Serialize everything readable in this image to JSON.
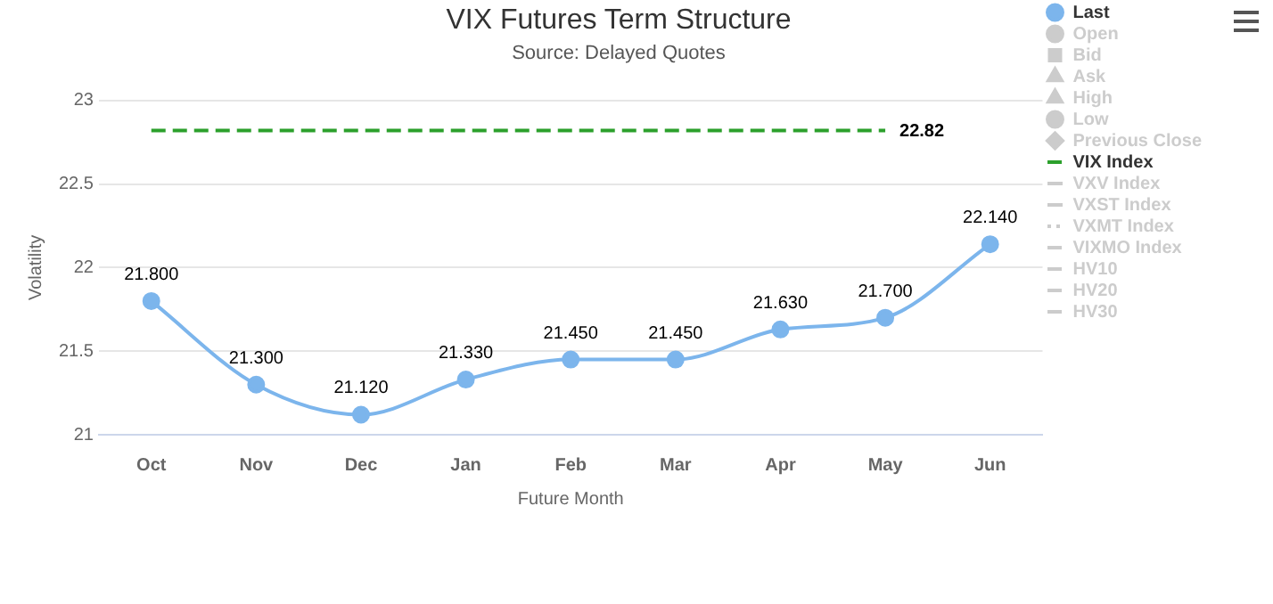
{
  "chart_data": {
    "type": "line",
    "title": "VIX Futures Term Structure",
    "subtitle": "Source: Delayed Quotes",
    "xlabel": "Future Month",
    "ylabel": "Volatility",
    "categories": [
      "Oct",
      "Nov",
      "Dec",
      "Jan",
      "Feb",
      "Mar",
      "Apr",
      "May",
      "Jun"
    ],
    "ylim": [
      21,
      23
    ],
    "yticks": [
      21,
      21.5,
      22,
      22.5,
      23
    ],
    "grid": "y",
    "legend": "right",
    "marker": "circle",
    "series": [
      {
        "name": "Last",
        "color": "#7cb5ec",
        "values": [
          21.8,
          21.3,
          21.12,
          21.33,
          21.45,
          21.45,
          21.63,
          21.7,
          22.14
        ],
        "value_labels": [
          "21.800",
          "21.300",
          "21.120",
          "21.330",
          "21.450",
          "21.450",
          "21.630",
          "21.700",
          "22.140"
        ]
      },
      {
        "name": "Open",
        "color": "#cccccc",
        "values": [
          null,
          null,
          null,
          null,
          null,
          null,
          null,
          null,
          null
        ]
      },
      {
        "name": "Bid",
        "color": "#cccccc",
        "marker": "square",
        "values": [
          null,
          null,
          null,
          null,
          null,
          null,
          null,
          null,
          null
        ]
      },
      {
        "name": "Ask",
        "color": "#cccccc",
        "marker": "triangle",
        "values": [
          null,
          null,
          null,
          null,
          null,
          null,
          null,
          null,
          null
        ]
      },
      {
        "name": "High",
        "color": "#cccccc",
        "marker": "triangle",
        "values": [
          null,
          null,
          null,
          null,
          null,
          null,
          null,
          null,
          null
        ]
      },
      {
        "name": "Low",
        "color": "#cccccc",
        "values": [
          null,
          null,
          null,
          null,
          null,
          null,
          null,
          null,
          null
        ]
      },
      {
        "name": "Previous Close",
        "color": "#cccccc",
        "marker": "diamond",
        "values": [
          null,
          null,
          null,
          null,
          null,
          null,
          null,
          null,
          null
        ]
      },
      {
        "name": "VIX Index",
        "color": "#2ca02c",
        "marker": "none",
        "line_style": "dashed",
        "values": [
          22.82,
          22.82,
          22.82,
          22.82,
          22.82,
          22.82,
          22.82,
          22.82,
          null
        ],
        "value_labels": [
          null,
          null,
          null,
          null,
          null,
          null,
          null,
          "22.82",
          null
        ]
      },
      {
        "name": "VXV Index",
        "color": "#cccccc",
        "marker": "none",
        "values": [
          null,
          null,
          null,
          null,
          null,
          null,
          null,
          null,
          null
        ]
      },
      {
        "name": "VXST Index",
        "color": "#cccccc",
        "marker": "none",
        "values": [
          null,
          null,
          null,
          null,
          null,
          null,
          null,
          null,
          null
        ]
      },
      {
        "name": "VXMT Index",
        "color": "#cccccc",
        "marker": "none",
        "line_style": "dotted",
        "values": [
          null,
          null,
          null,
          null,
          null,
          null,
          null,
          null,
          null
        ]
      },
      {
        "name": "VIXMO Index",
        "color": "#cccccc",
        "marker": "none",
        "line_style": "dashed",
        "values": [
          null,
          null,
          null,
          null,
          null,
          null,
          null,
          null,
          null
        ]
      },
      {
        "name": "HV10",
        "color": "#cccccc",
        "marker": "none",
        "line_style": "dashed",
        "values": [
          null,
          null,
          null,
          null,
          null,
          null,
          null,
          null,
          null
        ]
      },
      {
        "name": "HV20",
        "color": "#cccccc",
        "marker": "none",
        "line_style": "dashed",
        "values": [
          null,
          null,
          null,
          null,
          null,
          null,
          null,
          null,
          null
        ]
      },
      {
        "name": "HV30",
        "color": "#cccccc",
        "marker": "none",
        "line_style": "dashed",
        "values": [
          null,
          null,
          null,
          null,
          null,
          null,
          null,
          null,
          null
        ]
      }
    ]
  }
}
